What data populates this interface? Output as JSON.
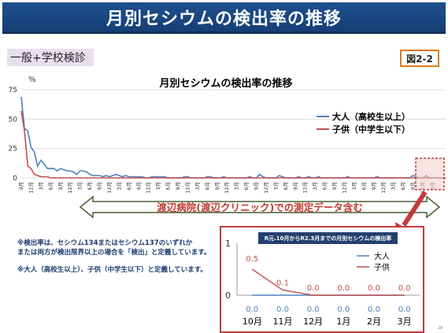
{
  "header": {
    "title": "月別セシウムの検出率の推移"
  },
  "subtitle_tag": "一般+学校検診",
  "figure_label": "図2-2",
  "chart_data": [
    {
      "type": "line",
      "title": "月別セシウムの検出率の推移",
      "ylabel": "%",
      "ylim": [
        0,
        75
      ],
      "y_ticks": [
        "0",
        "25",
        "50",
        "75"
      ],
      "x_tick_labels": [
        "9月",
        "12月",
        "3月",
        "6月",
        "9月",
        "12月",
        "3月",
        "6月",
        "9月",
        "12月",
        "3月",
        "6月",
        "9月",
        "12月",
        "3月",
        "6月",
        "9月",
        "12月",
        "3月",
        "6月",
        "9月",
        "12月",
        "3月",
        "6月",
        "9月",
        "12月",
        "3月",
        "6月",
        "9月",
        "12月",
        "3月",
        "6月",
        "9月",
        "12月",
        "3月",
        "6月",
        "9月",
        "12月",
        "3月",
        "6月",
        "9月",
        "12月",
        "3月"
      ],
      "x_tick_step_months": 3,
      "series": [
        {
          "name": "大人（高校生以上）",
          "color": "#4f81bd",
          "values": [
            69,
            42,
            40,
            26,
            22,
            10,
            15,
            12,
            8,
            8,
            8,
            6,
            8,
            7,
            6,
            6,
            5,
            3,
            6,
            6,
            5,
            3,
            2,
            2,
            2,
            1,
            2,
            1,
            2,
            3,
            2,
            1,
            2,
            1,
            1,
            1,
            1,
            1,
            0,
            0,
            1,
            1,
            1,
            1,
            1,
            0,
            0,
            0,
            0,
            0,
            1,
            1,
            0,
            0,
            0,
            0,
            0,
            1,
            1,
            0,
            0,
            0,
            1,
            0,
            0,
            0,
            0,
            0,
            0,
            0,
            1,
            0,
            0,
            3,
            1,
            0,
            0,
            0,
            0,
            2,
            1,
            0,
            0,
            0,
            0,
            1,
            0,
            0,
            1,
            0,
            0,
            1,
            0,
            0,
            0,
            0,
            0,
            0,
            0,
            0,
            1,
            0,
            0,
            0,
            0,
            0,
            0,
            0,
            0,
            1,
            0,
            0,
            0,
            0,
            0,
            0,
            0,
            0,
            0,
            0,
            2,
            1,
            0,
            0,
            2,
            0,
            0,
            0,
            0,
            0,
            0
          ]
        },
        {
          "name": "子供（中学生以下）",
          "color": "#c0504d",
          "values": [
            57,
            40,
            10,
            8,
            3,
            2,
            1,
            1,
            1,
            0,
            0,
            0,
            0,
            0,
            0,
            0,
            0,
            0,
            0,
            0,
            0,
            0,
            0,
            0,
            0,
            0,
            0,
            0,
            0,
            0,
            0,
            0,
            0,
            0,
            0,
            0,
            0,
            0,
            0,
            0,
            0,
            0,
            0,
            0,
            0,
            0,
            0,
            0,
            0,
            0,
            0,
            0,
            0,
            0,
            0,
            0,
            0,
            0,
            0,
            0,
            0,
            0,
            0,
            0,
            0,
            0,
            0,
            0,
            0,
            0,
            0,
            0,
            0,
            0,
            0,
            0,
            0,
            0,
            0,
            0,
            0,
            0,
            0,
            0,
            0,
            0,
            0,
            0,
            0,
            0,
            0,
            0,
            0,
            0,
            0,
            0,
            0,
            0,
            0,
            0,
            0,
            0,
            0,
            0,
            0,
            0,
            0,
            0,
            0,
            0,
            0,
            0,
            0,
            0,
            0,
            0,
            0,
            0,
            0,
            0,
            0,
            0,
            0,
            0,
            0,
            0,
            0,
            0,
            0,
            0,
            0
          ]
        }
      ],
      "grid": true,
      "legend_placement": "right"
    },
    {
      "type": "line",
      "title": "R元.10月からR2.3月までの月別セシウムの検出率",
      "ylim": [
        0,
        1
      ],
      "y_ticks": [
        "0",
        "1"
      ],
      "categories": [
        "10月",
        "11月",
        "12月",
        "1月",
        "2月",
        "3月"
      ],
      "series": [
        {
          "name": "大人",
          "color": "#4f81bd",
          "values": [
            0.0,
            0.0,
            0.0,
            0.0,
            0.0,
            0.0
          ],
          "labels": [
            "0.0",
            "0.0",
            "0.0",
            "0.0",
            "0.0",
            "0.0"
          ]
        },
        {
          "name": "子供",
          "color": "#c0504d",
          "values": [
            0.5,
            0.1,
            0.0,
            0.0,
            0.0,
            0.0
          ],
          "labels": [
            "0.5",
            "0.1",
            "0.0",
            "0.0",
            "0.0",
            "0.0"
          ]
        }
      ],
      "legend_placement": "top-right"
    }
  ],
  "banner_text": "渡辺病院(渡辺クリニック)での測定データ含む",
  "notes": [
    "※検出率は、セシウム134またはセシウム137のいずれか",
    "または両方が検出限界以上の場合を「検出」と定義しています。",
    "※大人（高校生以上）、子供（中学生以下）と定義しています。"
  ],
  "page_number": "28",
  "colors": {
    "title_bg": "#1d4f8e",
    "accent_orange": "#e07c20",
    "highlight_red": "#c23b3b",
    "banner_fill": "#ffffff"
  }
}
